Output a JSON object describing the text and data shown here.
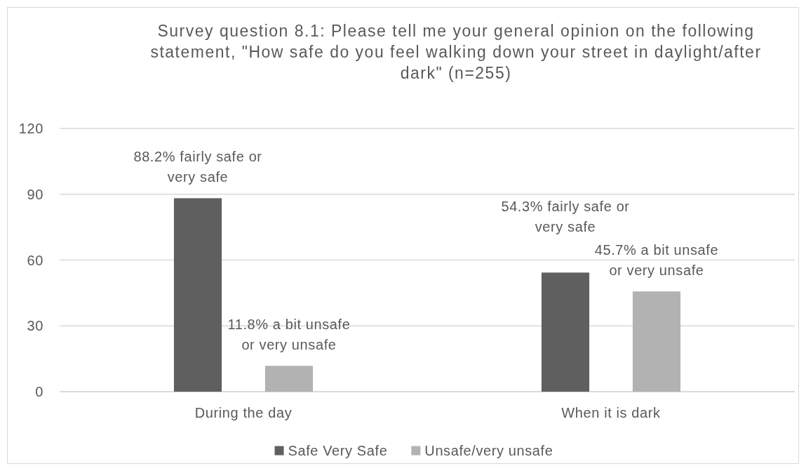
{
  "chart_data": {
    "type": "bar",
    "title": "Survey question 8.1: Please tell me your general opinion on the following statement, \"How safe do you feel walking down your street in daylight/after dark\" (n=255)",
    "categories": [
      "During the day",
      "When it is dark"
    ],
    "series": [
      {
        "name": "Safe Very Safe",
        "color": "#5f5f5f",
        "values": [
          88.2,
          54.3
        ],
        "value_labels": [
          "88.2% fairly safe or very safe",
          "54.3% fairly safe or very safe"
        ]
      },
      {
        "name": "Unsafe/very unsafe",
        "color": "#b2b2b2",
        "values": [
          11.8,
          45.7
        ],
        "value_labels": [
          "11.8% a bit unsafe or very unsafe",
          "45.7% a bit unsafe or very unsafe"
        ]
      }
    ],
    "ylim": [
      0,
      120
    ],
    "yticks": [
      0,
      30,
      60,
      90,
      120
    ],
    "grid": "y",
    "legend": "bottom"
  }
}
